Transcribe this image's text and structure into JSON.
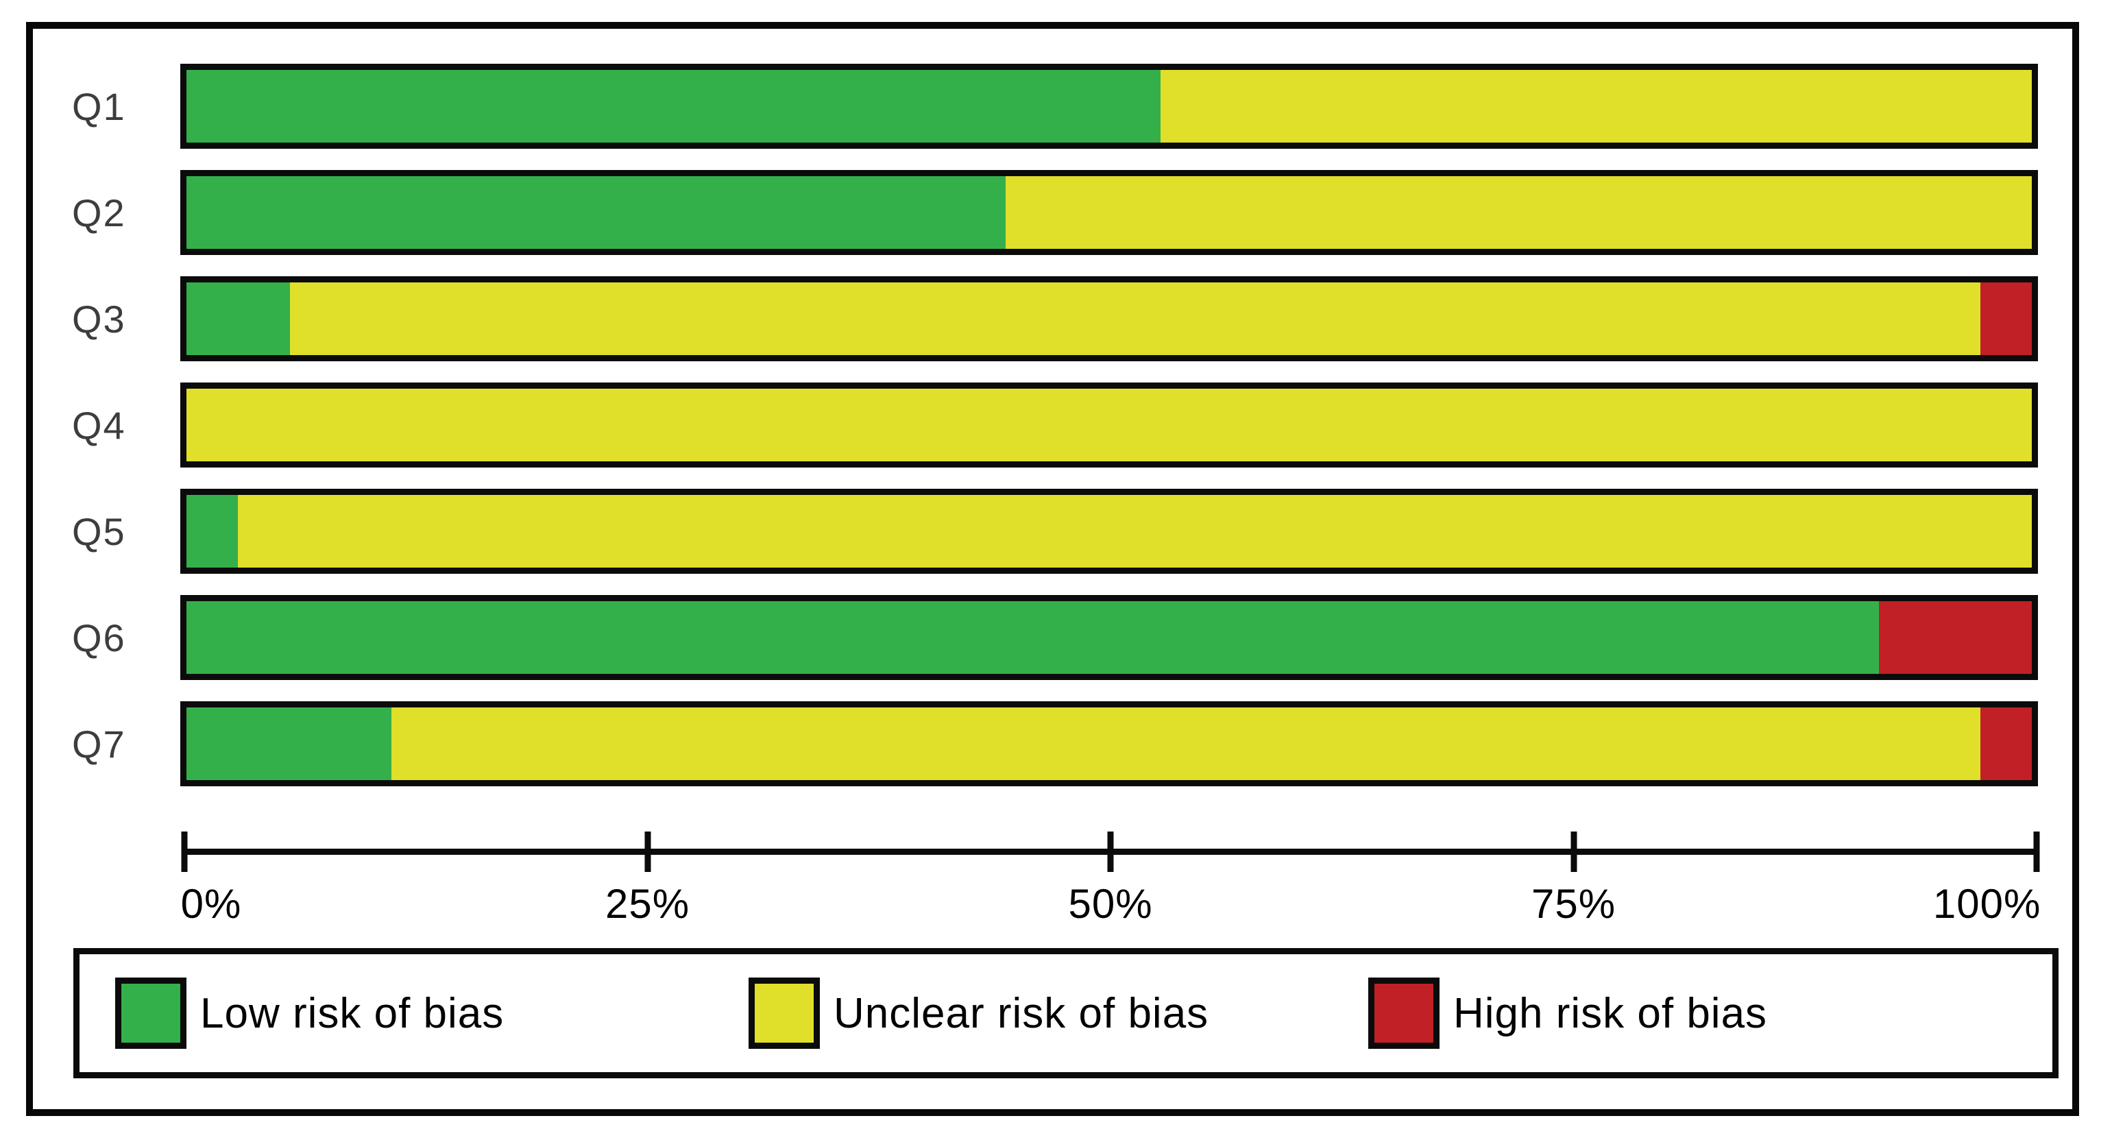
{
  "chart_data": {
    "type": "bar",
    "orientation": "horizontal",
    "stacked": true,
    "title": "",
    "xlabel": "",
    "ylabel": "",
    "xlim": [
      0,
      100
    ],
    "grid": false,
    "legend_position": "bottom",
    "categories": [
      "Q1",
      "Q2",
      "Q3",
      "Q4",
      "Q5",
      "Q6",
      "Q7"
    ],
    "series": [
      {
        "name": "Low risk of bias",
        "color": "#33b04a",
        "values": [
          52.8,
          44.4,
          5.6,
          0,
          2.8,
          91.7,
          11.1
        ]
      },
      {
        "name": "Unclear risk of bias",
        "color": "#e0df2a",
        "values": [
          47.2,
          55.6,
          91.6,
          100,
          97.2,
          0,
          86.1
        ]
      },
      {
        "name": "High risk of bias",
        "color": "#c02026",
        "values": [
          0,
          0,
          2.8,
          0,
          0,
          8.3,
          2.8
        ]
      }
    ],
    "x_ticks": [
      "0%",
      "25%",
      "50%",
      "75%",
      "100%"
    ],
    "x_tick_values": [
      0,
      25,
      50,
      75,
      100
    ]
  }
}
